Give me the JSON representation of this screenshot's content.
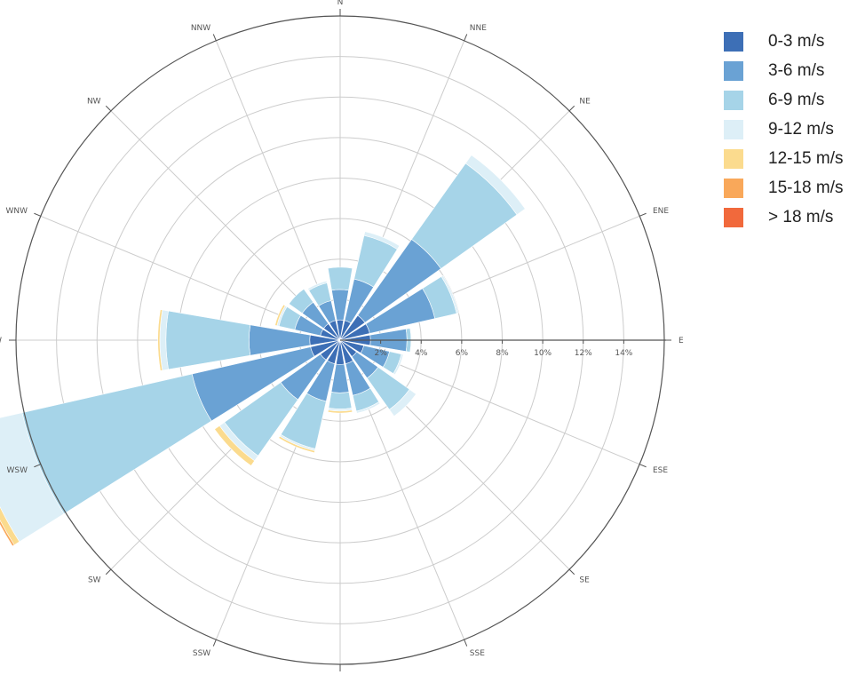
{
  "chart_data": {
    "type": "windrose",
    "radial_unit": "%",
    "radial_max": 16,
    "radial_ticks": [
      {
        "value": 2,
        "label": "2%"
      },
      {
        "value": 4,
        "label": "4%"
      },
      {
        "value": 6,
        "label": "6%"
      },
      {
        "value": 8,
        "label": "8%"
      },
      {
        "value": 10,
        "label": "10%"
      },
      {
        "value": 12,
        "label": "12%"
      },
      {
        "value": 14,
        "label": "14%"
      }
    ],
    "directions": [
      "N",
      "NNE",
      "NE",
      "ENE",
      "E",
      "ESE",
      "SE",
      "SSE",
      "S",
      "SSW",
      "SW",
      "WSW",
      "W",
      "WNW",
      "NW",
      "NNW"
    ],
    "speed_bins": [
      {
        "name": "0-3 m/s",
        "color": "#3d6fb6"
      },
      {
        "name": "3-6 m/s",
        "color": "#6aa2d4"
      },
      {
        "name": "6-9 m/s",
        "color": "#a6d4e8"
      },
      {
        "name": "9-12 m/s",
        "color": "#ddeff7"
      },
      {
        "name": "12-15 m/s",
        "color": "#fbdb8e"
      },
      {
        "name": "15-18 m/s",
        "color": "#f9a85a"
      },
      {
        "name": "> 18 m/s",
        "color": "#f1693c"
      }
    ],
    "series": [
      {
        "name": "0-3 m/s",
        "values": [
          1.0,
          1.0,
          1.5,
          1.5,
          1.5,
          1.2,
          1.0,
          1.2,
          1.2,
          1.2,
          1.2,
          1.5,
          1.5,
          1.0,
          1.0,
          1.0
        ]
      },
      {
        "name": "3-6 m/s",
        "values": [
          1.5,
          2.1,
          4.6,
          3.3,
          1.8,
          1.3,
          1.3,
          1.6,
          1.4,
          1.9,
          2.4,
          6.0,
          3.0,
          1.3,
          1.3,
          1.0
        ]
      },
      {
        "name": "6-9 m/s",
        "values": [
          1.1,
          2.2,
          4.6,
          1.1,
          0.2,
          0.6,
          1.9,
          0.8,
          0.8,
          2.4,
          3.4,
          8.6,
          4.1,
          0.8,
          0.8,
          0.9
        ]
      },
      {
        "name": "9-12 m/s",
        "values": [
          0.0,
          0.2,
          0.5,
          0.1,
          0.0,
          0.1,
          0.4,
          0.1,
          0.1,
          0.1,
          0.3,
          2.6,
          0.3,
          0.1,
          0.0,
          0.1
        ]
      },
      {
        "name": "12-15 m/s",
        "values": [
          0.0,
          0.0,
          0.0,
          0.0,
          0.0,
          0.0,
          0.0,
          0.0,
          0.1,
          0.1,
          0.3,
          0.3,
          0.1,
          0.1,
          0.0,
          0.0
        ]
      },
      {
        "name": "15-18 m/s",
        "values": [
          0.0,
          0.0,
          0.0,
          0.0,
          0.0,
          0.0,
          0.0,
          0.0,
          0.0,
          0.0,
          0.0,
          0.1,
          0.0,
          0.0,
          0.0,
          0.0
        ]
      },
      {
        "name": "> 18 m/s",
        "values": [
          0.0,
          0.0,
          0.0,
          0.0,
          0.0,
          0.0,
          0.0,
          0.0,
          0.0,
          0.0,
          0.0,
          0.0,
          0.0,
          0.0,
          0.0,
          0.0
        ]
      }
    ]
  }
}
